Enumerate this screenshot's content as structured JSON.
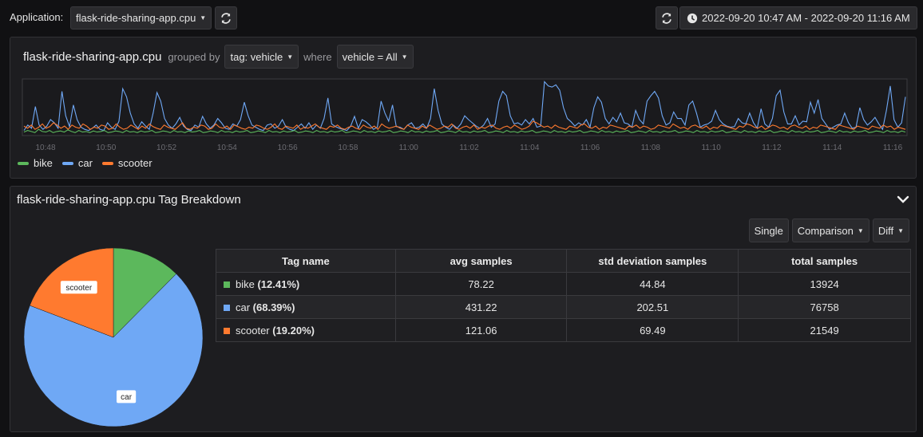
{
  "topbar": {
    "app_label": "Application:",
    "app_value": "flask-ride-sharing-app.cpu",
    "time_range": "2022-09-20 10:47 AM - 2022-09-20 11:16 AM"
  },
  "timeline": {
    "title": "flask-ride-sharing-app.cpu",
    "grouped_by_label": "grouped by",
    "group_tag": "tag: vehicle",
    "where_label": "where",
    "filter": "vehicle = All"
  },
  "breakdown": {
    "title": "flask-ride-sharing-app.cpu Tag Breakdown",
    "view_single": "Single",
    "view_comparison": "Comparison",
    "view_diff": "Diff",
    "table": {
      "headers": [
        "Tag name",
        "avg samples",
        "std deviation samples",
        "total samples"
      ],
      "rows": [
        {
          "tag": "bike",
          "pct": "(12.41%)",
          "avg": "78.22",
          "std": "44.84",
          "total": "13924",
          "color": "#5cb85c"
        },
        {
          "tag": "car",
          "pct": "(68.39%)",
          "avg": "431.22",
          "std": "202.51",
          "total": "76758",
          "color": "#6fa8f5"
        },
        {
          "tag": "scooter",
          "pct": "(19.20%)",
          "avg": "121.06",
          "std": "69.49",
          "total": "21549",
          "color": "#ff7a2f"
        }
      ]
    }
  },
  "chart_data": [
    {
      "type": "line",
      "title": "flask-ride-sharing-app.cpu",
      "x_tick_labels": [
        "10:48",
        "10:50",
        "10:52",
        "10:54",
        "10:56",
        "10:58",
        "11:00",
        "11:02",
        "11:04",
        "11:06",
        "11:08",
        "11:10",
        "11:12",
        "11:14",
        "11:16"
      ],
      "legend": [
        {
          "name": "bike",
          "color": "#5cb85c"
        },
        {
          "name": "car",
          "color": "#6fa8f5"
        },
        {
          "name": "scooter",
          "color": "#ff7a2f"
        }
      ],
      "series": [
        {
          "name": "car",
          "color": "#6fa8f5",
          "values": [
            0.08,
            0.18,
            0.12,
            0.52,
            0.18,
            0.1,
            0.16,
            0.28,
            0.22,
            0.12,
            0.8,
            0.35,
            0.15,
            0.55,
            0.28,
            0.14,
            0.1,
            0.08,
            0.12,
            0.18,
            0.1,
            0.08,
            0.22,
            0.14,
            0.1,
            0.25,
            0.85,
            0.7,
            0.4,
            0.2,
            0.12,
            0.24,
            0.16,
            0.1,
            0.4,
            0.78,
            0.62,
            0.3,
            0.18,
            0.12,
            0.2,
            0.32,
            0.16,
            0.1,
            0.08,
            0.18,
            0.14,
            0.34,
            0.2,
            0.12,
            0.18,
            0.3,
            0.22,
            0.12,
            0.1,
            0.2,
            0.16,
            0.28,
            0.6,
            0.35,
            0.18,
            0.14,
            0.1,
            0.08,
            0.18,
            0.2,
            0.12,
            0.16,
            0.28,
            0.14,
            0.1,
            0.08,
            0.14,
            0.2,
            0.12,
            0.22,
            0.1,
            0.18,
            0.12,
            0.3,
            0.68,
            0.2,
            0.15,
            0.12,
            0.1,
            0.08,
            0.16,
            0.34,
            0.12,
            0.28,
            0.24,
            0.18,
            0.1,
            0.14,
            0.62,
            0.4,
            0.25,
            0.55,
            0.15,
            0.14,
            0.1,
            0.18,
            0.22,
            0.12,
            0.14,
            0.2,
            0.12,
            0.3,
            0.85,
            0.45,
            0.2,
            0.14,
            0.1,
            0.18,
            0.12,
            0.2,
            0.35,
            0.28,
            0.22,
            0.16,
            0.12,
            0.18,
            0.3,
            0.14,
            0.2,
            0.62,
            0.8,
            0.72,
            0.35,
            0.2,
            0.22,
            0.18,
            0.28,
            0.2,
            0.3,
            0.14,
            0.16,
            0.98,
            0.9,
            0.88,
            0.92,
            0.82,
            0.5,
            0.3,
            0.24,
            0.16,
            0.22,
            0.18,
            0.28,
            0.14,
            0.5,
            0.7,
            0.6,
            0.3,
            0.2,
            0.32,
            0.24,
            0.4,
            0.22,
            0.2,
            0.14,
            0.45,
            0.28,
            0.2,
            0.62,
            0.72,
            0.8,
            0.68,
            0.35,
            0.18,
            0.22,
            0.42,
            0.3,
            0.3,
            0.18,
            0.55,
            0.62,
            0.4,
            0.14,
            0.18,
            0.2,
            0.25,
            0.45,
            0.28,
            0.2,
            0.16,
            0.14,
            0.15,
            0.3,
            0.22,
            0.2,
            0.4,
            0.22,
            0.12,
            0.48,
            0.2,
            0.14,
            0.3,
            0.72,
            0.82,
            0.42,
            0.2,
            0.2,
            0.35,
            0.18,
            0.25,
            0.24,
            0.6,
            0.4,
            0.65,
            0.3,
            0.2,
            0.1,
            0.14,
            0.18,
            0.2,
            0.4,
            0.22,
            0.12,
            0.14,
            0.5,
            0.28,
            0.18,
            0.24,
            0.32,
            0.2,
            0.1,
            0.45,
            0.9,
            0.28,
            0.14,
            0.22,
            0.7
          ]
        },
        {
          "name": "scooter",
          "color": "#ff7a2f",
          "values": [
            0.16,
            0.12,
            0.18,
            0.1,
            0.14,
            0.2,
            0.12,
            0.15,
            0.22,
            0.18,
            0.12,
            0.16,
            0.1,
            0.18,
            0.14,
            0.12,
            0.2,
            0.16,
            0.1,
            0.14,
            0.12,
            0.18,
            0.16,
            0.1,
            0.12,
            0.2,
            0.14,
            0.1,
            0.12,
            0.18,
            0.14,
            0.1,
            0.16,
            0.12,
            0.2,
            0.15,
            0.12,
            0.1,
            0.18,
            0.14,
            0.12,
            0.1,
            0.16,
            0.22,
            0.12,
            0.1,
            0.14,
            0.12,
            0.18,
            0.16,
            0.1,
            0.12,
            0.2,
            0.14,
            0.12,
            0.16,
            0.1,
            0.18,
            0.15,
            0.12,
            0.1,
            0.14,
            0.12,
            0.18,
            0.16,
            0.12,
            0.1,
            0.14,
            0.2,
            0.12,
            0.1,
            0.16,
            0.14,
            0.12,
            0.18,
            0.1,
            0.14,
            0.12,
            0.16,
            0.2,
            0.14,
            0.12,
            0.1,
            0.16,
            0.14,
            0.18,
            0.12,
            0.1,
            0.14,
            0.16,
            0.12,
            0.1,
            0.18,
            0.14,
            0.12,
            0.16,
            0.1,
            0.2,
            0.15,
            0.12,
            0.14,
            0.16,
            0.12,
            0.1,
            0.18,
            0.14,
            0.12,
            0.1,
            0.16,
            0.12,
            0.18,
            0.14,
            0.1,
            0.12,
            0.16,
            0.14,
            0.2,
            0.12,
            0.1,
            0.14,
            0.16,
            0.12,
            0.18,
            0.1,
            0.14,
            0.12,
            0.16,
            0.18,
            0.12,
            0.1,
            0.14,
            0.16,
            0.12,
            0.18,
            0.14,
            0.1,
            0.12,
            0.16,
            0.25,
            0.22,
            0.18,
            0.14,
            0.16,
            0.12,
            0.18,
            0.14,
            0.12,
            0.1,
            0.16,
            0.14,
            0.12,
            0.18,
            0.2,
            0.14,
            0.12,
            0.16,
            0.1,
            0.14,
            0.12,
            0.18,
            0.16,
            0.14,
            0.12,
            0.1,
            0.16,
            0.14,
            0.18,
            0.12,
            0.16,
            0.14,
            0.1,
            0.12,
            0.18,
            0.16,
            0.14,
            0.12,
            0.2,
            0.16,
            0.12,
            0.14,
            0.1,
            0.16,
            0.18,
            0.14,
            0.12,
            0.16,
            0.1,
            0.14,
            0.12,
            0.18,
            0.16,
            0.14,
            0.12,
            0.1,
            0.16,
            0.14,
            0.2,
            0.18,
            0.14,
            0.12,
            0.16,
            0.1,
            0.14,
            0.18,
            0.16,
            0.12,
            0.14,
            0.1,
            0.16,
            0.18,
            0.14,
            0.12,
            0.16,
            0.1,
            0.14,
            0.12,
            0.18,
            0.16,
            0.14,
            0.12,
            0.1,
            0.18,
            0.16,
            0.14,
            0.12,
            0.1,
            0.16,
            0.14,
            0.12,
            0.1,
            0.16,
            0.14,
            0.12,
            0.18,
            0.14,
            0.16,
            0.1,
            0.14,
            0.12,
            0.1
          ]
        },
        {
          "name": "bike",
          "color": "#5cb85c",
          "values": [
            0.05,
            0.08,
            0.06,
            0.04,
            0.1,
            0.06,
            0.05,
            0.08,
            0.04,
            0.06,
            0.07,
            0.05,
            0.09,
            0.06,
            0.04,
            0.08,
            0.05,
            0.06,
            0.04,
            0.07,
            0.05,
            0.06,
            0.08,
            0.04,
            0.05,
            0.07,
            0.06,
            0.04,
            0.08,
            0.05,
            0.06,
            0.04,
            0.07,
            0.05,
            0.06,
            0.08,
            0.04,
            0.05,
            0.07,
            0.06,
            0.04,
            0.08,
            0.05,
            0.06,
            0.04,
            0.07,
            0.05,
            0.06,
            0.08,
            0.04,
            0.05,
            0.07,
            0.06,
            0.04,
            0.08,
            0.05,
            0.06,
            0.04,
            0.07,
            0.05,
            0.06,
            0.08,
            0.04,
            0.05,
            0.07,
            0.06,
            0.04,
            0.08,
            0.05,
            0.06,
            0.04,
            0.07,
            0.05,
            0.06,
            0.08,
            0.04,
            0.05,
            0.07,
            0.06,
            0.04,
            0.08,
            0.05,
            0.06,
            0.04,
            0.07,
            0.05,
            0.06,
            0.08,
            0.04,
            0.05,
            0.07,
            0.06,
            0.04,
            0.08,
            0.05,
            0.06,
            0.04,
            0.07,
            0.05,
            0.06,
            0.08,
            0.04,
            0.05,
            0.07,
            0.06,
            0.04,
            0.08,
            0.05,
            0.06,
            0.04,
            0.07,
            0.05,
            0.06,
            0.08,
            0.04,
            0.05,
            0.07,
            0.06,
            0.04,
            0.08,
            0.05,
            0.06,
            0.04,
            0.07,
            0.05,
            0.06,
            0.08,
            0.04,
            0.05,
            0.07,
            0.06,
            0.04,
            0.08,
            0.05,
            0.06,
            0.04,
            0.07,
            0.05,
            0.06,
            0.08,
            0.04,
            0.05,
            0.07,
            0.06,
            0.04,
            0.08,
            0.05,
            0.06,
            0.04,
            0.07,
            0.05,
            0.06,
            0.08,
            0.04,
            0.05,
            0.07,
            0.06,
            0.04,
            0.08,
            0.05,
            0.06,
            0.04,
            0.07,
            0.05,
            0.06,
            0.08,
            0.04,
            0.05,
            0.07,
            0.06,
            0.04,
            0.08,
            0.05,
            0.06,
            0.04,
            0.07,
            0.05,
            0.06,
            0.08,
            0.04,
            0.05,
            0.07,
            0.06,
            0.04,
            0.08,
            0.05,
            0.06,
            0.04,
            0.07,
            0.05,
            0.06,
            0.08,
            0.04,
            0.05,
            0.07,
            0.06,
            0.04,
            0.08,
            0.05,
            0.06,
            0.04,
            0.07,
            0.05,
            0.06,
            0.08,
            0.04,
            0.05,
            0.07,
            0.06,
            0.04,
            0.08,
            0.05,
            0.06,
            0.04,
            0.07,
            0.05,
            0.06,
            0.08,
            0.04,
            0.05,
            0.07,
            0.06,
            0.04,
            0.08,
            0.05,
            0.06,
            0.04,
            0.07,
            0.05,
            0.06,
            0.08,
            0.04,
            0.05,
            0.07,
            0.06,
            0.04,
            0.08,
            0.05,
            0.06,
            0.04,
            0.07,
            0.05
          ]
        }
      ]
    },
    {
      "type": "pie",
      "title": "flask-ride-sharing-app.cpu Tag Breakdown",
      "slices": [
        {
          "name": "bike",
          "value": 12.41,
          "color": "#5cb85c",
          "label": ""
        },
        {
          "name": "car",
          "value": 68.39,
          "color": "#6fa8f5",
          "label": "car"
        },
        {
          "name": "scooter",
          "value": 19.2,
          "color": "#ff7a2f",
          "label": "scooter"
        }
      ]
    }
  ]
}
